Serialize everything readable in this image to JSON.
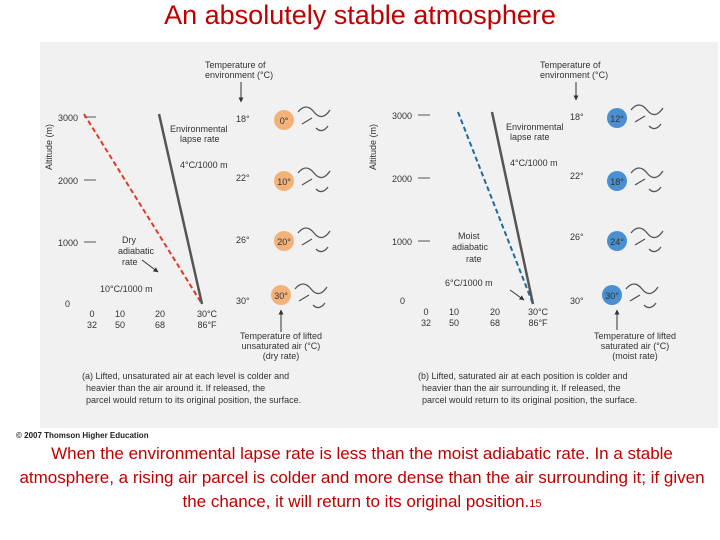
{
  "title": "An absolutely stable atmosphere",
  "copyright": "© 2007 Thomson Higher Education",
  "caption": "When the environmental lapse rate is less than the moist adiabatic rate. In a stable  atmosphere, a rising air parcel is colder and more dense than the air surrounding it; if given the chance, it will return to its original position.",
  "page_number": "15",
  "panel_a": {
    "env_label": [
      "Temperature of",
      "environment (°C)"
    ],
    "ylabel": "Altitude (m)",
    "yticks": [
      "3000",
      "2000",
      "1000",
      "0"
    ],
    "xticks_c": [
      "0",
      "10",
      "20",
      "30°C"
    ],
    "xticks_f": [
      "32",
      "50",
      "68",
      "86°F"
    ],
    "env_rate_label": [
      "Environmental",
      "lapse rate"
    ],
    "env_rate_value": "4°C/1000 m",
    "rate_label": [
      "Dry",
      "adiabatic",
      "rate"
    ],
    "rate_value": "10°C/1000 m",
    "env_temps": [
      "18°",
      "22°",
      "26°",
      "30°"
    ],
    "parcel_temps": [
      "0°",
      "10°",
      "20°",
      "30°"
    ],
    "bottom_label": [
      "Temperature of lifted",
      "unsaturated air (°C)",
      "(dry rate)"
    ],
    "note": [
      "(a) Lifted, unsaturated air at each level is colder and",
      "heavier than the air around it. If released, the",
      "parcel would return to its original position, the surface."
    ]
  },
  "panel_b": {
    "env_label": [
      "Temperature of",
      "environment (°C)"
    ],
    "ylabel": "Altitude (m)",
    "yticks": [
      "3000",
      "2000",
      "1000",
      "0"
    ],
    "xticks_c": [
      "0",
      "10",
      "20",
      "30°C"
    ],
    "xticks_f": [
      "32",
      "50",
      "68",
      "86°F"
    ],
    "env_rate_label": [
      "Environmental",
      "lapse rate"
    ],
    "env_rate_value": "4°C/1000 m",
    "rate_label": [
      "Moist",
      "adiabatic",
      "rate"
    ],
    "rate_value": "6°C/1000 m",
    "env_temps": [
      "18°",
      "22°",
      "26°",
      "30°"
    ],
    "parcel_temps": [
      "12°",
      "18°",
      "24°",
      "30°"
    ],
    "bottom_label": [
      "Temperature of lifted",
      "saturated air (°C)",
      "(moist rate)"
    ],
    "note": [
      "(b) Lifted, saturated air at each position is colder and",
      "heavier than the air surrounding it. If released, the",
      "parcel would return to its original position, the surface."
    ]
  },
  "colors": {
    "title": "#c00000",
    "dry_rate": "#e03a2a",
    "moist_rate": "#1e6aa0",
    "env_rate": "#555555",
    "warm_parcel": "#f3b27a",
    "cool_parcel": "#4a8fd0"
  }
}
